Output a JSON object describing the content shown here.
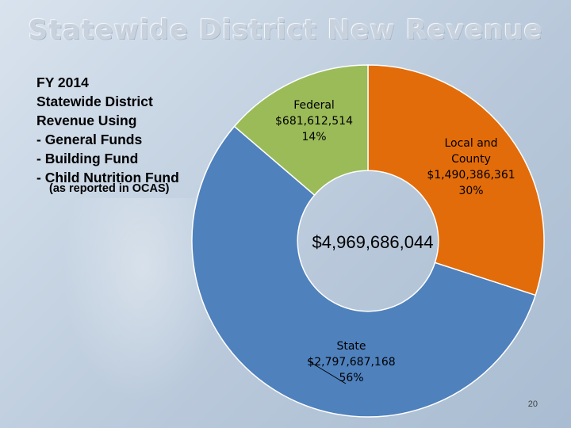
{
  "slide": {
    "title": "Statewide District New Revenue",
    "description_lines": [
      "FY 2014",
      "Statewide District",
      "Revenue Using",
      "- General Funds",
      "- Building Fund",
      "- Child Nutrition Fund"
    ],
    "note": "(as reported in OCAS)",
    "page_number": "20"
  },
  "chart_data": {
    "type": "pie",
    "title": "",
    "center_label": "$4,969,686,044",
    "slices": [
      {
        "name": "Local and County",
        "amount_label": "$1,490,386,361",
        "percent_label": "30%",
        "value": 1490386361,
        "color": "#e36c0a"
      },
      {
        "name": "State",
        "amount_label": "$2,797,687,168",
        "percent_label": "56%",
        "value": 2797687168,
        "color": "#4f81bd"
      },
      {
        "name": "Federal",
        "amount_label": "$681,612,514",
        "percent_label": "14%",
        "value": 681612514,
        "color": "#9bbb59"
      }
    ],
    "start_angle_deg": 0,
    "hole_ratio": 0.4
  }
}
